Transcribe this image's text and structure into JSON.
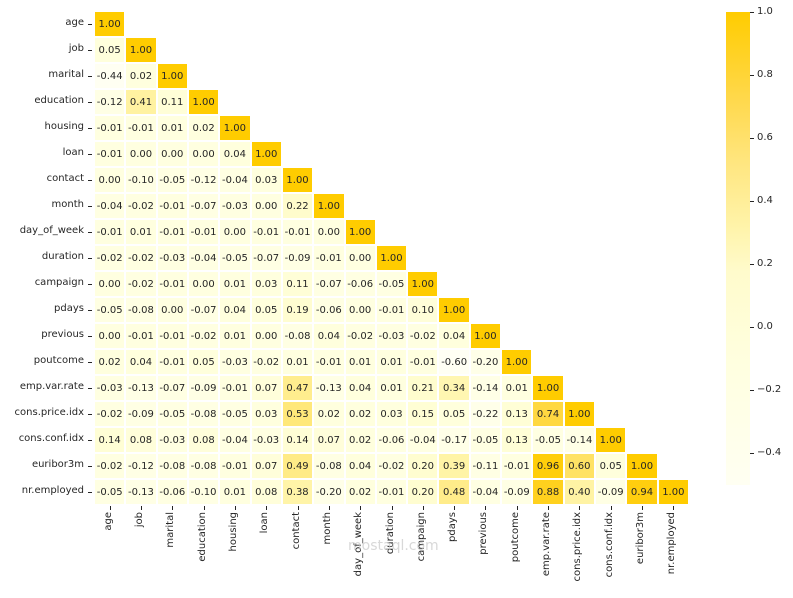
{
  "chart_data": {
    "type": "heatmap",
    "title": "",
    "variant": "lower-triangle correlation matrix",
    "labels": [
      "age",
      "job",
      "marital",
      "education",
      "housing",
      "loan",
      "contact",
      "month",
      "day_of_week",
      "duration",
      "campaign",
      "pdays",
      "previous",
      "poutcome",
      "emp.var.rate",
      "cons.price.idx",
      "cons.conf.idx",
      "euribor3m",
      "nr.employed"
    ],
    "matrix": [
      [
        1.0
      ],
      [
        0.05,
        1.0
      ],
      [
        -0.44,
        0.02,
        1.0
      ],
      [
        -0.12,
        0.41,
        0.11,
        1.0
      ],
      [
        -0.01,
        -0.01,
        0.01,
        0.02,
        1.0
      ],
      [
        -0.01,
        -0.0,
        -0.0,
        -0.0,
        0.04,
        1.0
      ],
      [
        -0.0,
        -0.1,
        -0.05,
        -0.12,
        -0.04,
        0.03,
        1.0
      ],
      [
        -0.04,
        -0.02,
        -0.01,
        -0.07,
        -0.03,
        -0.0,
        0.22,
        1.0
      ],
      [
        -0.01,
        0.01,
        -0.01,
        -0.01,
        0.0,
        -0.01,
        -0.01,
        0.0,
        1.0
      ],
      [
        -0.02,
        -0.02,
        -0.03,
        -0.04,
        -0.05,
        -0.07,
        -0.09,
        -0.01,
        0.0,
        1.0
      ],
      [
        -0.0,
        -0.02,
        -0.01,
        -0.0,
        0.01,
        0.03,
        0.11,
        -0.07,
        -0.06,
        -0.05,
        1.0
      ],
      [
        -0.05,
        -0.08,
        0.0,
        -0.07,
        0.04,
        0.05,
        0.19,
        -0.06,
        -0.0,
        -0.01,
        0.1,
        1.0
      ],
      [
        -0.0,
        -0.01,
        -0.01,
        -0.02,
        0.01,
        -0.0,
        -0.08,
        0.04,
        -0.02,
        -0.03,
        -0.02,
        0.04,
        1.0
      ],
      [
        0.02,
        0.04,
        -0.01,
        0.05,
        -0.03,
        -0.02,
        0.01,
        -0.01,
        0.01,
        0.01,
        -0.01,
        -0.6,
        -0.2,
        1.0
      ],
      [
        -0.03,
        -0.13,
        -0.07,
        -0.09,
        -0.01,
        0.07,
        0.47,
        -0.13,
        0.04,
        0.01,
        0.21,
        0.34,
        -0.14,
        0.01,
        1.0
      ],
      [
        -0.02,
        -0.09,
        -0.05,
        -0.08,
        -0.05,
        0.03,
        0.53,
        0.02,
        0.02,
        0.03,
        0.15,
        0.05,
        -0.22,
        0.13,
        0.74,
        1.0
      ],
      [
        0.14,
        0.08,
        -0.03,
        0.08,
        -0.04,
        -0.03,
        0.14,
        0.07,
        0.02,
        -0.06,
        -0.04,
        -0.17,
        -0.05,
        0.13,
        -0.05,
        -0.14,
        1.0
      ],
      [
        -0.02,
        -0.12,
        -0.08,
        -0.08,
        -0.01,
        0.07,
        0.49,
        -0.08,
        0.04,
        -0.02,
        0.2,
        0.39,
        -0.11,
        -0.01,
        0.96,
        0.6,
        0.05,
        1.0
      ],
      [
        -0.05,
        -0.13,
        -0.06,
        -0.1,
        0.01,
        0.08,
        0.38,
        -0.2,
        0.02,
        -0.01,
        0.2,
        0.48,
        -0.04,
        -0.09,
        0.88,
        0.4,
        -0.09,
        0.94,
        1.0
      ]
    ],
    "colorbar": {
      "ticks": [
        "1.0",
        "0.8",
        "0.6",
        "0.4",
        "0.2",
        "0.0",
        "−0.2",
        "−0.4"
      ],
      "vmin": -0.5,
      "vmax": 1.0,
      "low_color": "#fffff2",
      "high_color": "#ffcc00"
    },
    "annot_format": "0.00",
    "grid": false,
    "legend_position": "right"
  },
  "watermark": "mostaql.com"
}
